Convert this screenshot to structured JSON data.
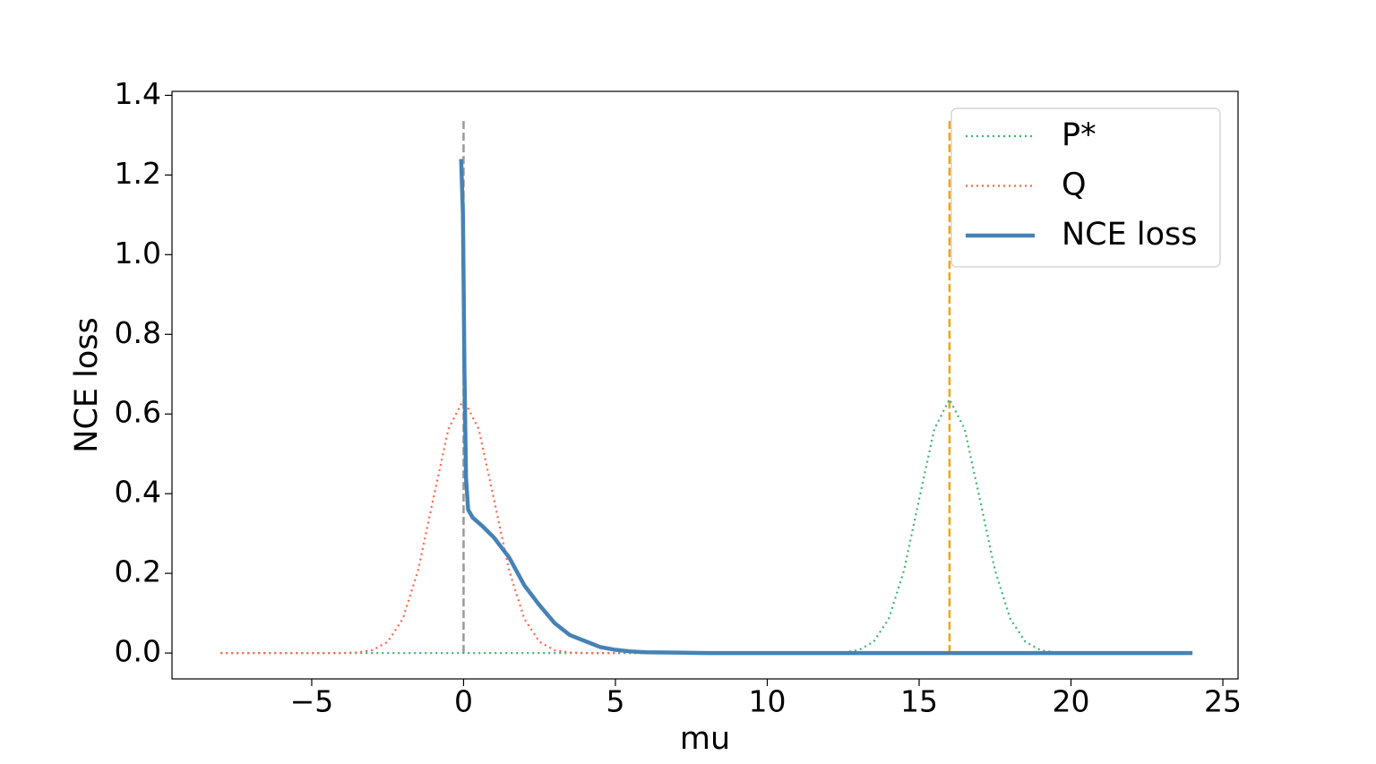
{
  "chart_data": {
    "type": "line",
    "xlabel": "mu",
    "ylabel": "NCE loss",
    "xlim": [
      -9.6,
      25.5
    ],
    "ylim": [
      -0.065,
      1.41
    ],
    "xticks": [
      {
        "value": -5,
        "label": "−5"
      },
      0,
      5,
      10,
      15,
      20,
      25
    ],
    "yticks": [
      {
        "value": 0,
        "label": "0.0"
      },
      {
        "value": 0.2,
        "label": "0.2"
      },
      {
        "value": 0.4,
        "label": "0.4"
      },
      {
        "value": 0.6,
        "label": "0.6"
      },
      {
        "value": 0.8,
        "label": "0.8"
      },
      {
        "value": 1.0,
        "label": "1.0"
      },
      {
        "value": 1.2,
        "label": "1.2"
      },
      {
        "value": 1.4,
        "label": "1.4"
      }
    ],
    "legend": "upper right",
    "vlines": [
      {
        "x": 0,
        "ymin": 0,
        "ymax": 1.34,
        "color": "#999999"
      },
      {
        "x": 16,
        "ymin": 0,
        "ymax": 1.34,
        "color": "#f5a300"
      }
    ],
    "series": [
      {
        "name": "P*",
        "color": "#3cb371",
        "style": "dotted",
        "x": [
          -8,
          12,
          12.5,
          13,
          13.5,
          14,
          14.5,
          15,
          15.5,
          16,
          16.5,
          17,
          17.5,
          18,
          18.5,
          19,
          19.5,
          20,
          24
        ],
        "values": [
          0,
          0,
          0.0014,
          0.007,
          0.028,
          0.086,
          0.207,
          0.386,
          0.562,
          0.637,
          0.562,
          0.386,
          0.207,
          0.086,
          0.028,
          0.007,
          0.0014,
          0,
          0
        ]
      },
      {
        "name": "Q",
        "color": "#ff6347",
        "style": "dotted",
        "x": [
          -8,
          -4,
          -3.5,
          -3,
          -2.5,
          -2,
          -1.5,
          -1,
          -0.5,
          0,
          0.5,
          1,
          1.5,
          2,
          2.5,
          3,
          3.5,
          4,
          24
        ],
        "values": [
          0,
          0,
          0.0014,
          0.007,
          0.028,
          0.086,
          0.207,
          0.386,
          0.562,
          0.637,
          0.562,
          0.386,
          0.207,
          0.086,
          0.028,
          0.007,
          0.0014,
          0,
          0
        ]
      },
      {
        "name": "NCE loss",
        "color": "#4682b4",
        "style": "solid",
        "x": [
          -0.08,
          -0.02,
          0.03,
          0.08,
          0.15,
          0.3,
          0.6,
          1.0,
          1.5,
          2.0,
          2.5,
          3.0,
          3.5,
          4.0,
          4.5,
          5.0,
          5.5,
          6,
          7,
          8,
          24
        ],
        "values": [
          1.24,
          1.1,
          0.7,
          0.44,
          0.36,
          0.34,
          0.32,
          0.29,
          0.24,
          0.17,
          0.12,
          0.075,
          0.045,
          0.03,
          0.015,
          0.008,
          0.004,
          0.002,
          0.001,
          0,
          0
        ]
      }
    ]
  }
}
